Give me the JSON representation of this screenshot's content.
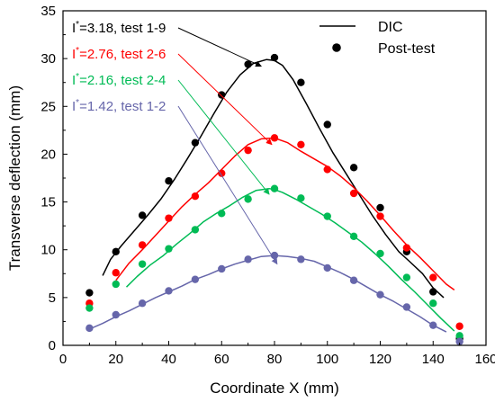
{
  "chart_data": {
    "type": "line",
    "xlabel": "Coordinate X (mm)",
    "ylabel": "Transverse deflection (mm)",
    "xlim": [
      0,
      160
    ],
    "ylim": [
      0,
      35
    ],
    "xticks": [
      0,
      20,
      40,
      60,
      80,
      100,
      120,
      140,
      160
    ],
    "yticks": [
      0,
      5,
      10,
      15,
      20,
      25,
      30,
      35
    ],
    "grid": false,
    "legend": {
      "placement": "top-right",
      "line_label": "DIC",
      "marker_label": "Post-test"
    },
    "series": [
      {
        "color": "#000000",
        "annotation_prefix": "I",
        "annotation_sup": "*",
        "annotation_rest": "=3.18, test 1-9",
        "dic": {
          "x": [
            15,
            18,
            22,
            27,
            32,
            37,
            42,
            47,
            52,
            57,
            62,
            67,
            72,
            77,
            80,
            83,
            87,
            92,
            97,
            102,
            107,
            112,
            117,
            122,
            127,
            131,
            136,
            140,
            144
          ],
          "y": [
            7.3,
            9.0,
            10.4,
            12.0,
            13.6,
            15.3,
            17.3,
            19.5,
            21.8,
            24.2,
            26.5,
            28.3,
            29.5,
            29.9,
            29.8,
            29.3,
            27.8,
            25.3,
            22.7,
            20.2,
            18.0,
            15.8,
            13.6,
            11.6,
            9.8,
            8.8,
            7.5,
            6.0,
            5.0
          ]
        },
        "post_test": {
          "x": [
            10,
            20,
            30,
            40,
            50,
            60,
            70,
            80,
            90,
            100,
            110,
            120,
            130,
            140,
            150
          ],
          "y": [
            5.5,
            9.8,
            13.6,
            17.2,
            21.2,
            26.2,
            29.4,
            30.1,
            27.5,
            23.1,
            18.6,
            14.4,
            9.8,
            5.6,
            0.7
          ]
        }
      },
      {
        "color": "#ff0000",
        "annotation_prefix": "I",
        "annotation_sup": "*",
        "annotation_rest": "=2.76, test 2-6",
        "dic": {
          "x": [
            20,
            25,
            30,
            35,
            40,
            45,
            50,
            55,
            60,
            65,
            70,
            75,
            80,
            85,
            90,
            95,
            100,
            105,
            110,
            115,
            120,
            125,
            130,
            135,
            140,
            145,
            148
          ],
          "y": [
            6.8,
            8.6,
            10.0,
            11.5,
            13.0,
            14.5,
            15.8,
            17.0,
            18.4,
            19.8,
            21.0,
            21.6,
            21.7,
            21.2,
            20.3,
            19.5,
            18.7,
            17.7,
            16.5,
            15.1,
            13.6,
            12.0,
            10.5,
            9.2,
            7.8,
            6.4,
            5.8
          ]
        },
        "post_test": {
          "x": [
            10,
            20,
            30,
            40,
            50,
            60,
            70,
            80,
            90,
            100,
            110,
            120,
            130,
            140,
            150
          ],
          "y": [
            4.4,
            7.6,
            10.5,
            13.3,
            15.6,
            18.0,
            20.4,
            21.7,
            21.0,
            18.4,
            15.9,
            13.5,
            10.2,
            7.1,
            2.0
          ]
        }
      },
      {
        "color": "#00bb55",
        "annotation_prefix": "I",
        "annotation_sup": "*",
        "annotation_rest": "=2.16, test 2-4",
        "dic": {
          "x": [
            24,
            28,
            33,
            38,
            43,
            48,
            53,
            58,
            63,
            68,
            73,
            78,
            80,
            83,
            88,
            93,
            98,
            103,
            108,
            113,
            118,
            123,
            128,
            133,
            138,
            143,
            148
          ],
          "y": [
            6.1,
            7.2,
            8.4,
            9.4,
            10.6,
            11.7,
            12.9,
            13.8,
            14.6,
            15.5,
            16.2,
            16.4,
            16.3,
            16.0,
            15.3,
            14.5,
            13.7,
            12.8,
            11.8,
            10.8,
            9.6,
            8.3,
            6.9,
            5.6,
            4.2,
            2.8,
            1.5
          ]
        },
        "post_test": {
          "x": [
            10,
            20,
            30,
            40,
            50,
            60,
            70,
            80,
            90,
            100,
            110,
            120,
            130,
            140,
            150
          ],
          "y": [
            3.9,
            6.4,
            8.5,
            10.1,
            12.1,
            13.8,
            15.3,
            16.4,
            15.4,
            13.5,
            11.4,
            9.6,
            7.1,
            4.4,
            1.0
          ]
        }
      },
      {
        "color": "#6666aa",
        "annotation_prefix": "I",
        "annotation_sup": "*",
        "annotation_rest": "=1.42, test 1-2",
        "dic": {
          "x": [
            10,
            15,
            20,
            25,
            30,
            35,
            40,
            45,
            50,
            55,
            60,
            65,
            70,
            75,
            80,
            85,
            90,
            95,
            100,
            105,
            110,
            115,
            120,
            125,
            130,
            135,
            140,
            145
          ],
          "y": [
            1.7,
            2.3,
            3.0,
            3.6,
            4.3,
            5.0,
            5.6,
            6.2,
            6.9,
            7.4,
            8.0,
            8.5,
            8.9,
            9.3,
            9.4,
            9.3,
            9.1,
            8.8,
            8.2,
            7.6,
            6.9,
            6.1,
            5.3,
            4.6,
            3.8,
            3.0,
            2.1,
            1.4
          ]
        },
        "post_test": {
          "x": [
            10,
            20,
            30,
            40,
            50,
            60,
            70,
            80,
            90,
            100,
            110,
            120,
            130,
            140,
            150
          ],
          "y": [
            1.8,
            3.2,
            4.4,
            5.7,
            6.9,
            8.0,
            9.0,
            9.4,
            9.0,
            8.1,
            6.8,
            5.3,
            4.0,
            2.1,
            0.4
          ]
        }
      }
    ],
    "arrows": [
      {
        "from_series": 0,
        "to": [
          75,
          29.2
        ]
      },
      {
        "from_series": 1,
        "to": [
          79,
          21.0
        ]
      },
      {
        "from_series": 2,
        "to": [
          78,
          15.8
        ]
      },
      {
        "from_series": 3,
        "to": [
          81,
          8.5
        ]
      }
    ]
  }
}
